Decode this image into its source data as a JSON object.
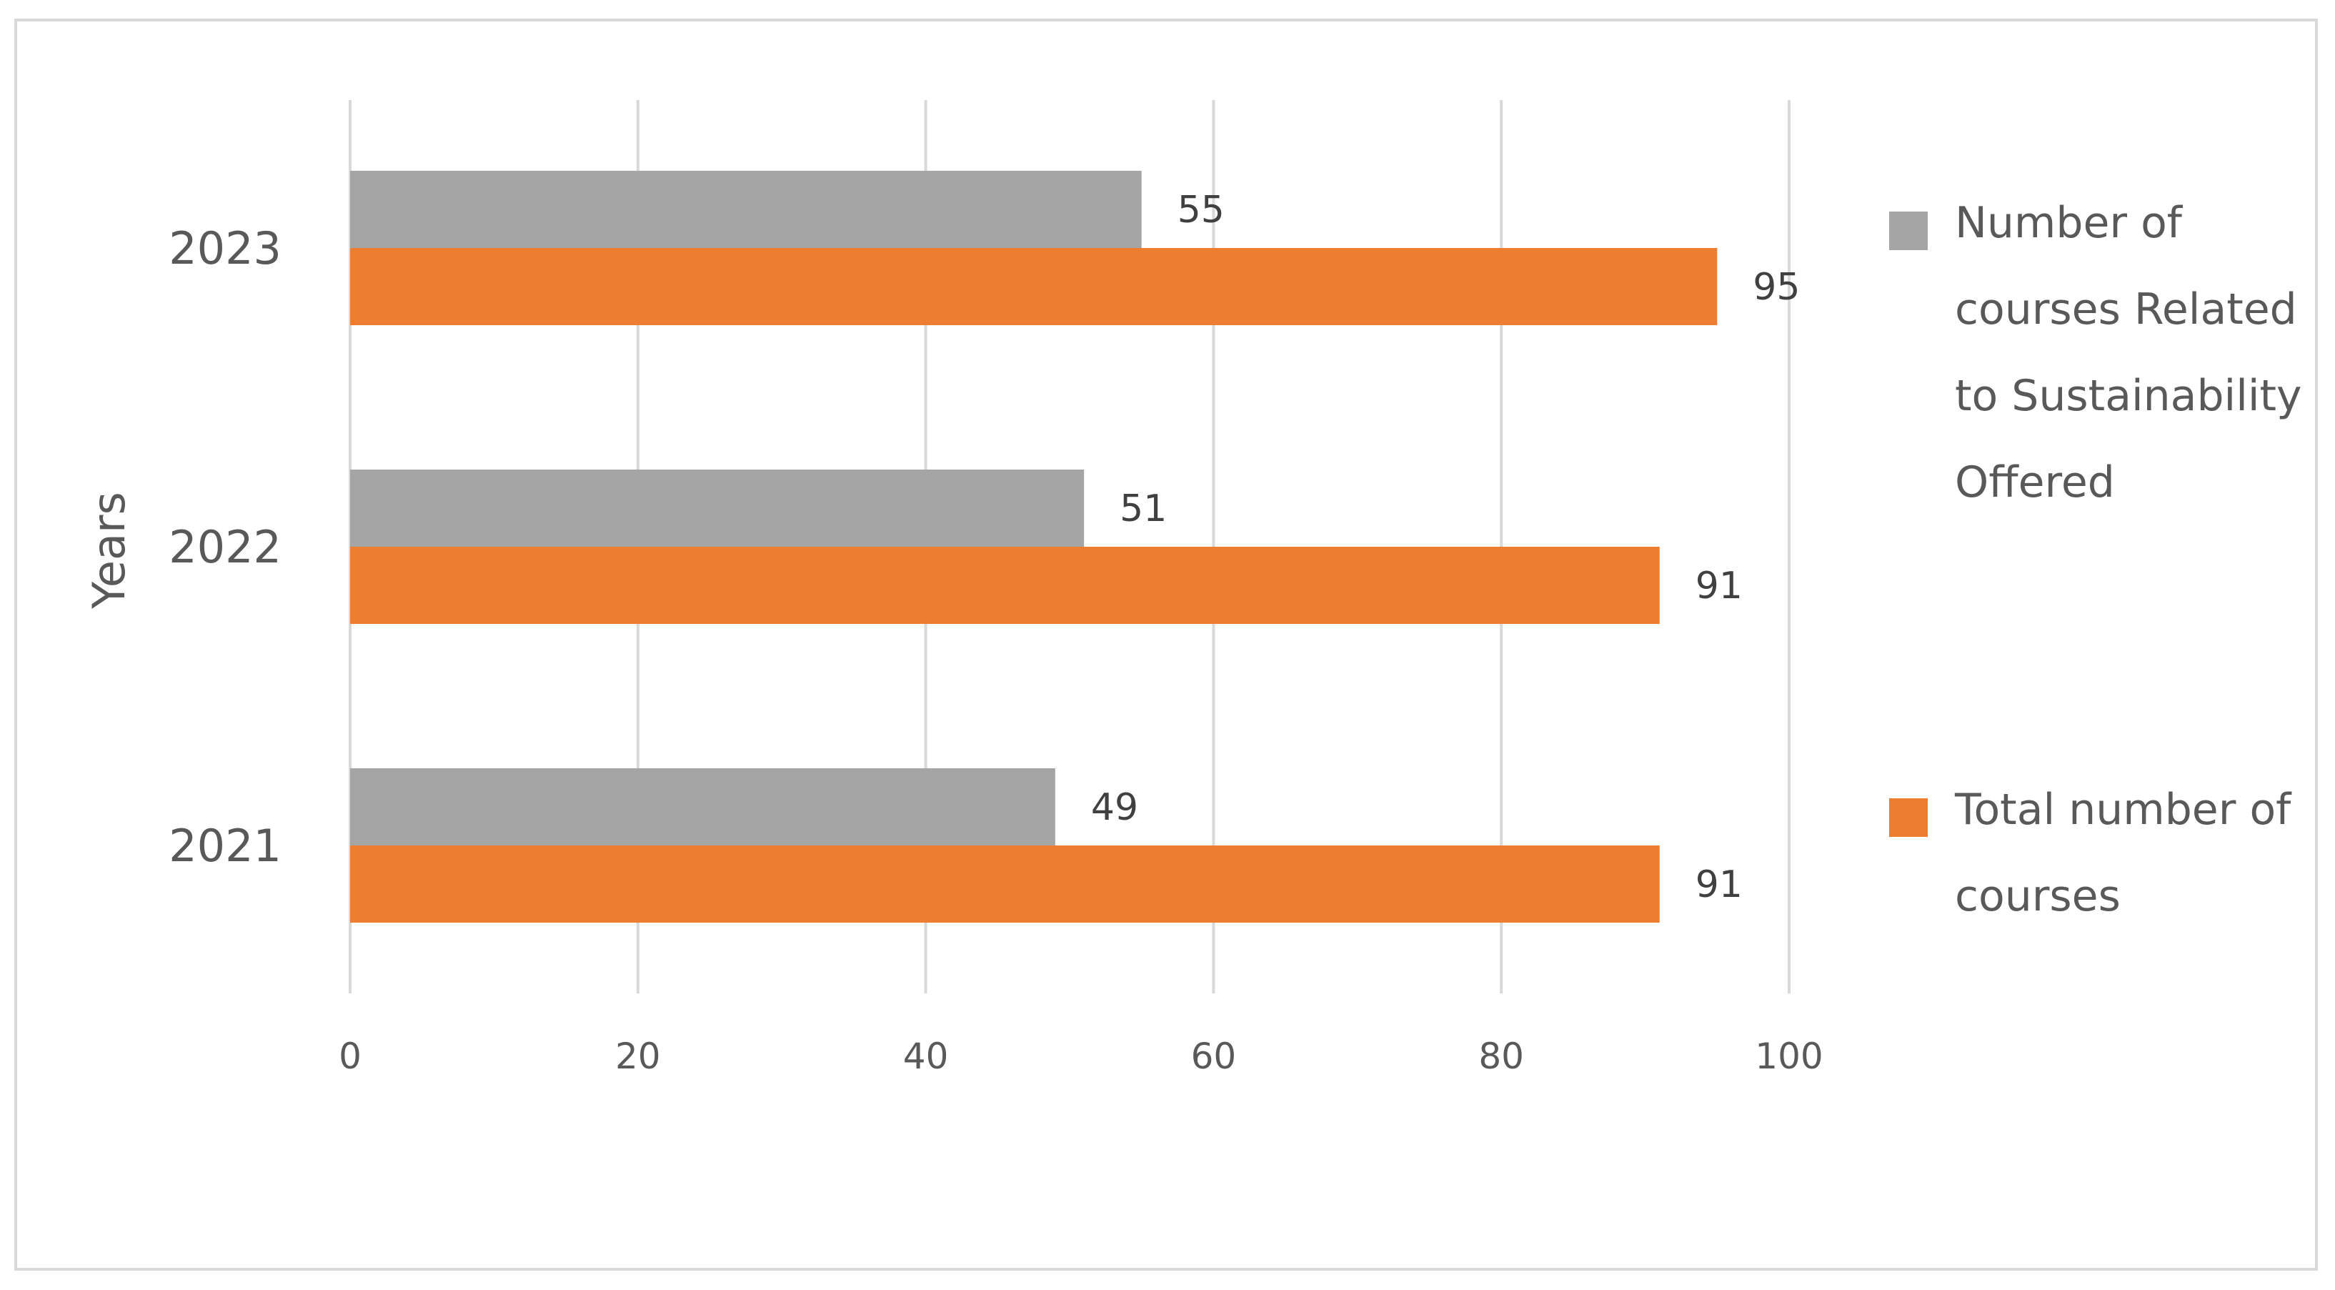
{
  "chart_data": {
    "type": "bar",
    "orientation": "horizontal",
    "categories": [
      "2021",
      "2022",
      "2023"
    ],
    "series": [
      {
        "name": "Number of courses  Related to Sustainability Offered",
        "legend_lines": [
          "Number of",
          "courses  Related",
          "to Sustainability",
          "Offered"
        ],
        "color": "#a5a5a5",
        "values": [
          49,
          51,
          55
        ]
      },
      {
        "name": "Total number of courses",
        "legend_lines": [
          "Total number of",
          "courses"
        ],
        "color": "#ed7d31",
        "values": [
          91,
          91,
          95
        ]
      }
    ],
    "xlim": [
      0,
      100
    ],
    "x_ticks": [
      0,
      20,
      40,
      60,
      80,
      100
    ],
    "ylabel": "Years",
    "xlabel": "",
    "title": "",
    "grid": "vertical",
    "legend_position": "right",
    "data_labels": true
  }
}
